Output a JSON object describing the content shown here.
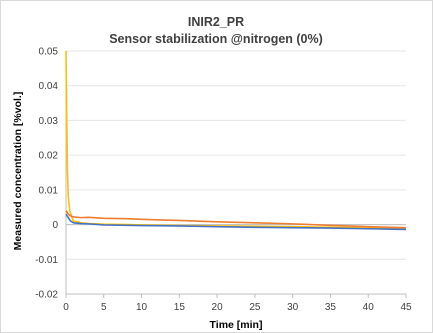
{
  "chart_data": {
    "type": "line",
    "title": "INIR2_PR",
    "subtitle": "Sensor stabilization @nitrogen (0%)",
    "xlabel": "Time [min]",
    "ylabel": "Measured concentration [%vol.]",
    "xlim": [
      0,
      45
    ],
    "ylim": [
      -0.02,
      0.05
    ],
    "x_ticks": [
      0,
      5,
      10,
      15,
      20,
      25,
      30,
      35,
      40,
      45
    ],
    "y_ticks": [
      -0.02,
      -0.01,
      0,
      0.01,
      0.02,
      0.03,
      0.04,
      0.05
    ],
    "x_tick_labels": [
      "0",
      "5",
      "10",
      "15",
      "20",
      "25",
      "30",
      "35",
      "40",
      "45"
    ],
    "y_tick_labels": [
      "-0.02",
      "-0.01",
      "0",
      "0.01",
      "0.02",
      "0.03",
      "0.04",
      "0.05"
    ],
    "grid": "horizontal",
    "legend": "none",
    "series": [
      {
        "color": "#ffc000",
        "x": [
          0,
          0.1,
          0.2,
          0.3,
          0.5,
          0.8,
          1,
          1.5,
          2,
          3,
          5,
          8,
          10,
          15,
          20,
          25,
          30,
          35,
          40,
          45
        ],
        "y": [
          0.05,
          0.03,
          0.015,
          0.008,
          0.004,
          0.002,
          0.001,
          0.0008,
          0.0005,
          0.0003,
          0.0001,
          0,
          -0.0001,
          -0.0003,
          -0.0004,
          -0.0005,
          -0.0006,
          -0.0008,
          -0.001,
          -0.0012
        ]
      },
      {
        "color": "#ed7d31",
        "x": [
          0,
          0.3,
          0.6,
          1,
          2,
          3,
          5,
          8,
          10,
          13,
          15,
          20,
          25,
          30,
          35,
          40,
          45
        ],
        "y": [
          0.004,
          0.003,
          0.0025,
          0.0022,
          0.002,
          0.0021,
          0.0018,
          0.0017,
          0.0015,
          0.0013,
          0.0012,
          0.0008,
          0.0005,
          0.0002,
          -0.0002,
          -0.0006,
          -0.0009
        ]
      },
      {
        "color": "#4472c4",
        "x": [
          0,
          0.3,
          0.6,
          1,
          2,
          3,
          5,
          8,
          10,
          15,
          20,
          25,
          30,
          35,
          40,
          45
        ],
        "y": [
          0.003,
          0.002,
          0.001,
          0.0005,
          0.0003,
          0.0002,
          -0.0001,
          -0.0002,
          -0.0003,
          -0.0004,
          -0.0006,
          -0.0008,
          -0.0009,
          -0.001,
          -0.0012,
          -0.0014
        ]
      }
    ]
  }
}
